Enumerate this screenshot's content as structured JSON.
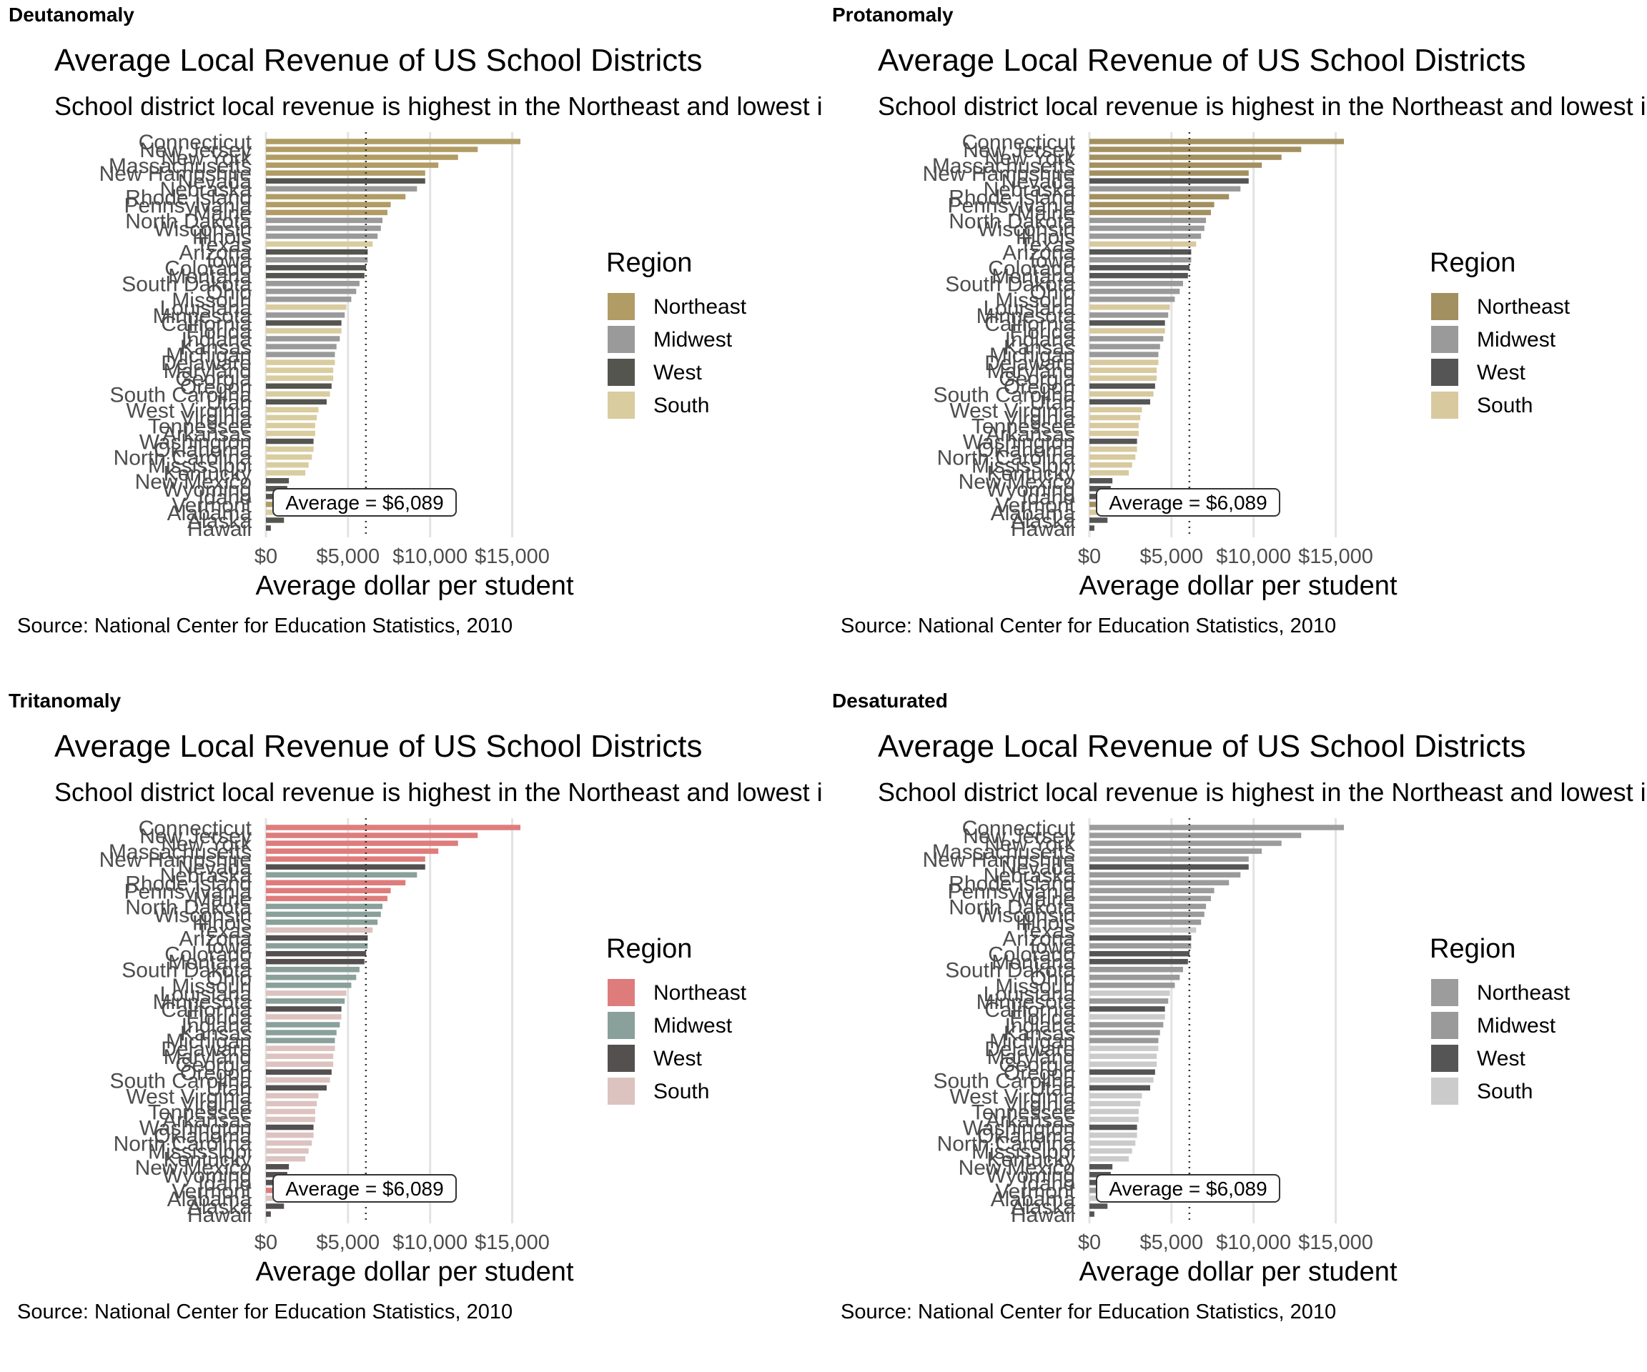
{
  "panels": [
    {
      "label": "Deutanomaly",
      "colors": {
        "Northeast": "#b09c64",
        "Midwest": "#9a9a9a",
        "West": "#555550",
        "South": "#d9cc9f"
      }
    },
    {
      "label": "Protanomaly",
      "colors": {
        "Northeast": "#a39060",
        "Midwest": "#9a9a9a",
        "West": "#555555",
        "South": "#d8c99f"
      }
    },
    {
      "label": "Tritanomaly",
      "colors": {
        "Northeast": "#de7c7c",
        "Midwest": "#8aa09a",
        "West": "#545050",
        "South": "#dcc3c0"
      }
    },
    {
      "label": "Desaturated",
      "colors": {
        "Northeast": "#9c9c9c",
        "Midwest": "#9a9a9a",
        "West": "#555555",
        "South": "#cbcbcb"
      }
    }
  ],
  "chart_data": {
    "type": "bar",
    "orientation": "horizontal",
    "title": "Average Local Revenue of US School Districts",
    "subtitle": "School district local revenue is highest in the Northeast and lowest in the South",
    "xlabel": "Average dollar per student",
    "caption": "Source: National Center for Education Statistics, 2010",
    "xlim": [
      0,
      15500
    ],
    "xticks": [
      0,
      5000,
      10000,
      15000
    ],
    "xtick_labels": [
      "$0",
      "$5,000",
      "$10,000",
      "$15,000"
    ],
    "average_line": 6089,
    "average_label": "Average = $6,089",
    "legend_title": "Region",
    "legend_position": "right",
    "region_order": [
      "Northeast",
      "Midwest",
      "West",
      "South"
    ],
    "states": [
      {
        "name": "Connecticut",
        "value": 15500,
        "region": "Northeast"
      },
      {
        "name": "New Jersey",
        "value": 12900,
        "region": "Northeast"
      },
      {
        "name": "New York",
        "value": 11700,
        "region": "Northeast"
      },
      {
        "name": "Massachusetts",
        "value": 10500,
        "region": "Northeast"
      },
      {
        "name": "New Hampshire",
        "value": 9700,
        "region": "Northeast"
      },
      {
        "name": "Nevada",
        "value": 9700,
        "region": "West"
      },
      {
        "name": "Nebraska",
        "value": 9200,
        "region": "Midwest"
      },
      {
        "name": "Rhode Island",
        "value": 8500,
        "region": "Northeast"
      },
      {
        "name": "Pennsylvania",
        "value": 7600,
        "region": "Northeast"
      },
      {
        "name": "Maine",
        "value": 7400,
        "region": "Northeast"
      },
      {
        "name": "North Dakota",
        "value": 7100,
        "region": "Midwest"
      },
      {
        "name": "Wisconsin",
        "value": 7000,
        "region": "Midwest"
      },
      {
        "name": "Illinois",
        "value": 6800,
        "region": "Midwest"
      },
      {
        "name": "Texas",
        "value": 6500,
        "region": "South"
      },
      {
        "name": "Arizona",
        "value": 6200,
        "region": "West"
      },
      {
        "name": "Iowa",
        "value": 6200,
        "region": "Midwest"
      },
      {
        "name": "Colorado",
        "value": 6100,
        "region": "West"
      },
      {
        "name": "Montana",
        "value": 6000,
        "region": "West"
      },
      {
        "name": "South Dakota",
        "value": 5700,
        "region": "Midwest"
      },
      {
        "name": "Ohio",
        "value": 5500,
        "region": "Midwest"
      },
      {
        "name": "Missouri",
        "value": 5200,
        "region": "Midwest"
      },
      {
        "name": "Louisiana",
        "value": 4900,
        "region": "South"
      },
      {
        "name": "Minnesota",
        "value": 4800,
        "region": "Midwest"
      },
      {
        "name": "California",
        "value": 4600,
        "region": "West"
      },
      {
        "name": "Florida",
        "value": 4600,
        "region": "South"
      },
      {
        "name": "Indiana",
        "value": 4500,
        "region": "Midwest"
      },
      {
        "name": "Kansas",
        "value": 4300,
        "region": "Midwest"
      },
      {
        "name": "Michigan",
        "value": 4200,
        "region": "Midwest"
      },
      {
        "name": "Delaware",
        "value": 4200,
        "region": "South"
      },
      {
        "name": "Maryland",
        "value": 4100,
        "region": "South"
      },
      {
        "name": "Georgia",
        "value": 4100,
        "region": "South"
      },
      {
        "name": "Oregon",
        "value": 4000,
        "region": "West"
      },
      {
        "name": "South Carolina",
        "value": 3900,
        "region": "South"
      },
      {
        "name": "Utah",
        "value": 3700,
        "region": "West"
      },
      {
        "name": "West Virginia",
        "value": 3200,
        "region": "South"
      },
      {
        "name": "Virginia",
        "value": 3100,
        "region": "South"
      },
      {
        "name": "Tennessee",
        "value": 3000,
        "region": "South"
      },
      {
        "name": "Arkansas",
        "value": 3000,
        "region": "South"
      },
      {
        "name": "Washington",
        "value": 2900,
        "region": "West"
      },
      {
        "name": "Oklahoma",
        "value": 2900,
        "region": "South"
      },
      {
        "name": "North Carolina",
        "value": 2800,
        "region": "South"
      },
      {
        "name": "Mississippi",
        "value": 2600,
        "region": "South"
      },
      {
        "name": "Kentucky",
        "value": 2400,
        "region": "South"
      },
      {
        "name": "New Mexico",
        "value": 1400,
        "region": "West"
      },
      {
        "name": "Wyoming",
        "value": 1300,
        "region": "West"
      },
      {
        "name": "Idaho",
        "value": 1200,
        "region": "West"
      },
      {
        "name": "Vermont",
        "value": 700,
        "region": "Northeast"
      },
      {
        "name": "Alabama",
        "value": 600,
        "region": "South"
      },
      {
        "name": "Alaska",
        "value": 1100,
        "region": "West"
      },
      {
        "name": "Hawaii",
        "value": 300,
        "region": "West"
      }
    ]
  }
}
